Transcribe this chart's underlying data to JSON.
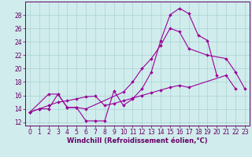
{
  "line1_x": [
    0,
    1,
    2,
    3,
    4,
    5,
    6,
    7,
    8,
    9,
    10,
    11,
    12,
    13,
    14,
    15,
    16,
    17,
    18,
    19,
    20
  ],
  "line1_y": [
    13.5,
    14.0,
    14.0,
    16.2,
    14.2,
    14.2,
    12.2,
    12.2,
    12.2,
    16.7,
    14.5,
    15.5,
    17.0,
    19.5,
    24.2,
    28.0,
    29.0,
    28.2,
    25.0,
    24.2,
    19.0
  ],
  "line2_x": [
    0,
    2,
    3,
    4,
    5,
    6,
    10,
    11,
    12,
    13,
    14,
    15,
    16,
    17,
    19,
    21,
    22,
    23
  ],
  "line2_y": [
    13.5,
    16.2,
    16.2,
    14.2,
    14.2,
    14.0,
    16.5,
    18.0,
    20.0,
    21.5,
    23.5,
    26.0,
    25.5,
    23.0,
    22.0,
    21.5,
    19.5,
    17.0
  ],
  "line3_x": [
    0,
    1,
    2,
    3,
    4,
    5,
    6,
    7,
    8,
    9,
    10,
    11,
    12,
    13,
    14,
    15,
    16,
    17,
    21,
    22
  ],
  "line3_y": [
    13.5,
    14.0,
    14.5,
    15.0,
    15.2,
    15.5,
    15.8,
    15.9,
    14.5,
    14.8,
    15.2,
    15.6,
    16.0,
    16.4,
    16.8,
    17.2,
    17.5,
    17.2,
    19.0,
    17.0
  ],
  "bg_color": "#d0ecec",
  "grid_color": "#a0cccc",
  "line_color": "#990099",
  "marker_size": 2.0,
  "xlim": [
    -0.5,
    23.5
  ],
  "ylim": [
    11.5,
    30.0
  ],
  "yticks": [
    12,
    14,
    16,
    18,
    20,
    22,
    24,
    26,
    28
  ],
  "xticks": [
    0,
    1,
    2,
    3,
    4,
    5,
    6,
    7,
    8,
    9,
    10,
    11,
    12,
    13,
    14,
    15,
    16,
    17,
    18,
    19,
    20,
    21,
    22,
    23
  ],
  "xlabel": "Windchill (Refroidissement éolien,°C)",
  "xlabel_fontsize": 6.0,
  "tick_fontsize": 5.5,
  "tick_color": "#660066",
  "spine_color": "#660066"
}
